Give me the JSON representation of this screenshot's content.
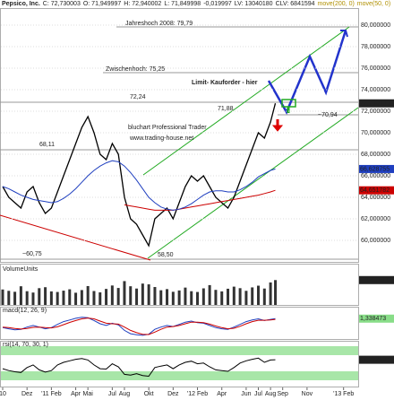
{
  "chart_data": [
    {
      "type": "line",
      "title": "Pepsico, Inc.",
      "header": [
        "C: 72,730003",
        "O: 71,949997",
        "H: 72,940002",
        "L: 71,849998",
        "-0,019997",
        "LV: 13040180",
        "CLV: 6841594"
      ],
      "x": [
        0,
        0.5,
        1,
        1.5,
        2,
        2.5,
        3,
        3.5,
        4,
        4.5,
        5,
        5.5,
        6,
        6.5,
        7,
        7.5,
        8,
        8.5,
        9,
        9.5,
        10,
        10.5,
        11,
        11.5,
        12,
        12.5,
        13,
        13.5,
        14,
        14.5,
        15,
        15.5,
        16,
        16.5,
        17,
        17.5,
        18,
        18.5,
        19,
        19.5,
        20,
        20.5,
        21,
        21.5,
        22,
        22.4
      ],
      "series": [
        {
          "color": "#000000",
          "end_label": "72,730003",
          "values": [
            65,
            64,
            63.5,
            63,
            64.5,
            65,
            63.5,
            62.5,
            63,
            64.5,
            66,
            67.5,
            69,
            70.5,
            71.5,
            70,
            68,
            67.5,
            69,
            68,
            64,
            62,
            61.5,
            60.5,
            59.5,
            62,
            62.5,
            63,
            62,
            63.5,
            65,
            66,
            65.5,
            66,
            65,
            64,
            63.5,
            63,
            64,
            65.5,
            67,
            68.5,
            70,
            69.5,
            71,
            72.73
          ]
        },
        {
          "name": "move(200, 0)",
          "color": "#cc0000",
          "end_label": "64,651782",
          "values": [
            null,
            null,
            null,
            null,
            null,
            null,
            null,
            null,
            null,
            null,
            null,
            null,
            null,
            null,
            null,
            null,
            null,
            null,
            null,
            null,
            63.3,
            63.2,
            63.1,
            63.0,
            62.9,
            62.8,
            62.8,
            62.8,
            62.8,
            62.9,
            63.0,
            63.1,
            63.2,
            63.3,
            63.4,
            63.5,
            63.6,
            63.7,
            63.8,
            63.9,
            64.0,
            64.1,
            64.2,
            64.35,
            64.5,
            64.65
          ]
        },
        {
          "name": "move(50, 0)",
          "color": "#1f3fbf",
          "end_label": "66,628755",
          "values": [
            65,
            64.8,
            64.5,
            64.2,
            64,
            63.8,
            63.7,
            63.6,
            63.5,
            63.6,
            63.9,
            64.3,
            64.8,
            65.4,
            66,
            66.5,
            66.9,
            67.2,
            67.4,
            67.3,
            66.9,
            66.3,
            65.6,
            64.8,
            64,
            63.5,
            63.1,
            62.9,
            62.8,
            62.9,
            63.1,
            63.4,
            63.8,
            64.2,
            64.5,
            64.6,
            64.6,
            64.5,
            64.5,
            64.7,
            65,
            65.4,
            65.9,
            66.2,
            66.5,
            66.63
          ]
        }
      ],
      "annotations": [
        "Jahreshoch 2008: 79,79",
        "Zwischenhoch: 75,25",
        "72,24",
        "71,88",
        "68,11",
        "~60,75",
        "58,50",
        "~70,94",
        "Limit- Kauforder - hier",
        "bluchart Professional Trader",
        "www.trading-house.net"
      ],
      "xlim": [
        -0.22,
        29.2
      ],
      "xticks": [
        {
          "value": 0,
          "label": "10"
        },
        {
          "value": 2,
          "label": "Dez"
        },
        {
          "value": 4,
          "label": "'11 Feb"
        },
        {
          "value": 6,
          "label": "Apr"
        },
        {
          "value": 7,
          "label": "Mai"
        },
        {
          "value": 9,
          "label": "Jul"
        },
        {
          "value": 10,
          "label": "Aug"
        },
        {
          "value": 12,
          "label": "Okt"
        },
        {
          "value": 14,
          "label": "Dez"
        },
        {
          "value": 16,
          "label": "'12 Feb"
        },
        {
          "value": 18,
          "label": "Apr"
        },
        {
          "value": 20,
          "label": "Jun"
        },
        {
          "value": 21,
          "label": "Jul"
        },
        {
          "value": 22,
          "label": "Aug"
        },
        {
          "value": 23,
          "label": "Sep"
        },
        {
          "value": 25,
          "label": "Nov"
        },
        {
          "value": 28,
          "label": "'13 Feb"
        }
      ],
      "ylim": [
        58,
        81.5
      ],
      "yticks": [
        {
          "value": 60,
          "label": "60,000000"
        },
        {
          "value": 62,
          "label": "62,000000"
        },
        {
          "value": 64,
          "label": "64,000000"
        },
        {
          "value": 66,
          "label": "66,000000"
        },
        {
          "value": 68,
          "label": "68,000000"
        },
        {
          "value": 70,
          "label": "70,000000"
        },
        {
          "value": 72,
          "label": "72,000000"
        },
        {
          "value": 74,
          "label": "74,000000"
        },
        {
          "value": 76,
          "label": "76,000000"
        },
        {
          "value": 78,
          "label": "78,000000"
        },
        {
          "value": 80,
          "label": "80,000000"
        }
      ],
      "grid": true
    },
    {
      "type": "bar",
      "title": "VolumeUnits",
      "color": "#333333",
      "end_label": "13040180",
      "ylim": [
        0,
        16000000
      ],
      "values": [
        8100000,
        7400000,
        6900000,
        9800000,
        7200000,
        6500000,
        8800000,
        9300000,
        7100000,
        6800000,
        7500000,
        8200000,
        6400000,
        7800000,
        9900000,
        7300000,
        6600000,
        8400000,
        10200000,
        8900000,
        12500000,
        9800000,
        8600000,
        11200000,
        10800000,
        9400000,
        7700000,
        8300000,
        6900000,
        7600000,
        9100000,
        7200000,
        6800000,
        8700000,
        10400000,
        7900000,
        7100000,
        8500000,
        9600000,
        8800000,
        7400000,
        9200000,
        10100000,
        8600000,
        11800000,
        13040180
      ]
    },
    {
      "type": "line",
      "title": "macd(12, 26, 9)",
      "ylim": [
        -2.2,
        2.2
      ],
      "series": [
        {
          "color": "#1f3fbf",
          "end_label": "1,338473",
          "values": [
            -0.3,
            -0.5,
            -0.7,
            -0.6,
            -0.2,
            0.1,
            -0.2,
            -0.5,
            -0.3,
            0.3,
            0.8,
            1.1,
            1.4,
            1.6,
            1.5,
            1.0,
            0.4,
            0.1,
            0.5,
            0.2,
            -0.8,
            -1.4,
            -1.6,
            -1.7,
            -1.5,
            -0.6,
            -0.2,
            0.1,
            -0.1,
            0.3,
            0.7,
            0.9,
            0.6,
            0.5,
            0.1,
            -0.3,
            -0.5,
            -0.6,
            -0.2,
            0.3,
            0.8,
            1.1,
            1.3,
            1.0,
            1.2,
            1.34
          ]
        },
        {
          "color": "#cc0000",
          "values": [
            -0.2,
            -0.3,
            -0.45,
            -0.55,
            -0.45,
            -0.25,
            -0.2,
            -0.3,
            -0.35,
            -0.15,
            0.25,
            0.65,
            1.0,
            1.3,
            1.45,
            1.3,
            0.9,
            0.5,
            0.4,
            0.35,
            -0.2,
            -0.8,
            -1.2,
            -1.5,
            -1.55,
            -1.1,
            -0.6,
            -0.2,
            -0.1,
            0.1,
            0.4,
            0.7,
            0.7,
            0.6,
            0.35,
            0,
            -0.3,
            -0.5,
            -0.4,
            -0.05,
            0.4,
            0.8,
            1.05,
            1.05,
            1.1,
            1.2
          ]
        }
      ]
    },
    {
      "type": "line",
      "title": "rsi(14, 70, 30, 1)",
      "ylim": [
        0,
        100
      ],
      "series": [
        {
          "color": "#000000",
          "end_label": "68,772637",
          "values": [
            45,
            40,
            37,
            35,
            48,
            55,
            42,
            36,
            40,
            55,
            62,
            66,
            70,
            72,
            68,
            55,
            45,
            44,
            58,
            50,
            30,
            28,
            32,
            27,
            25,
            48,
            52,
            55,
            45,
            55,
            62,
            65,
            58,
            60,
            50,
            42,
            40,
            38,
            48,
            60,
            66,
            70,
            73,
            62,
            68,
            68.77
          ]
        }
      ]
    }
  ]
}
